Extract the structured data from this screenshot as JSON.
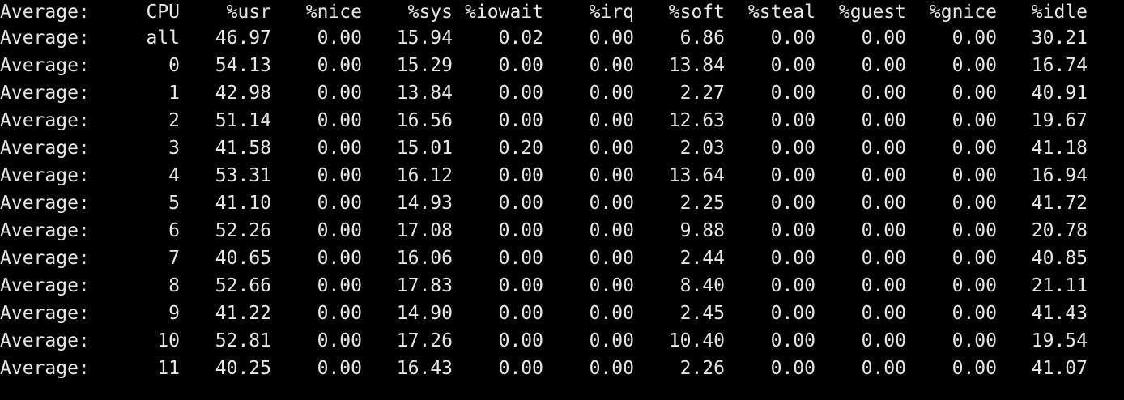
{
  "terminal": {
    "header": {
      "label": "Average:",
      "columns": [
        "CPU",
        "%usr",
        "%nice",
        "%sys",
        "%iowait",
        "%irq",
        "%soft",
        "%steal",
        "%guest",
        "%gnice",
        "%idle"
      ]
    },
    "rows": [
      {
        "label": "Average:",
        "cells": [
          "all",
          "46.97",
          "0.00",
          "15.94",
          "0.02",
          "0.00",
          "6.86",
          "0.00",
          "0.00",
          "0.00",
          "30.21"
        ]
      },
      {
        "label": "Average:",
        "cells": [
          "0",
          "54.13",
          "0.00",
          "15.29",
          "0.00",
          "0.00",
          "13.84",
          "0.00",
          "0.00",
          "0.00",
          "16.74"
        ]
      },
      {
        "label": "Average:",
        "cells": [
          "1",
          "42.98",
          "0.00",
          "13.84",
          "0.00",
          "0.00",
          "2.27",
          "0.00",
          "0.00",
          "0.00",
          "40.91"
        ]
      },
      {
        "label": "Average:",
        "cells": [
          "2",
          "51.14",
          "0.00",
          "16.56",
          "0.00",
          "0.00",
          "12.63",
          "0.00",
          "0.00",
          "0.00",
          "19.67"
        ]
      },
      {
        "label": "Average:",
        "cells": [
          "3",
          "41.58",
          "0.00",
          "15.01",
          "0.20",
          "0.00",
          "2.03",
          "0.00",
          "0.00",
          "0.00",
          "41.18"
        ]
      },
      {
        "label": "Average:",
        "cells": [
          "4",
          "53.31",
          "0.00",
          "16.12",
          "0.00",
          "0.00",
          "13.64",
          "0.00",
          "0.00",
          "0.00",
          "16.94"
        ]
      },
      {
        "label": "Average:",
        "cells": [
          "5",
          "41.10",
          "0.00",
          "14.93",
          "0.00",
          "0.00",
          "2.25",
          "0.00",
          "0.00",
          "0.00",
          "41.72"
        ]
      },
      {
        "label": "Average:",
        "cells": [
          "6",
          "52.26",
          "0.00",
          "17.08",
          "0.00",
          "0.00",
          "9.88",
          "0.00",
          "0.00",
          "0.00",
          "20.78"
        ]
      },
      {
        "label": "Average:",
        "cells": [
          "7",
          "40.65",
          "0.00",
          "16.06",
          "0.00",
          "0.00",
          "2.44",
          "0.00",
          "0.00",
          "0.00",
          "40.85"
        ]
      },
      {
        "label": "Average:",
        "cells": [
          "8",
          "52.66",
          "0.00",
          "17.83",
          "0.00",
          "0.00",
          "8.40",
          "0.00",
          "0.00",
          "0.00",
          "21.11"
        ]
      },
      {
        "label": "Average:",
        "cells": [
          "9",
          "41.22",
          "0.00",
          "14.90",
          "0.00",
          "0.00",
          "2.45",
          "0.00",
          "0.00",
          "0.00",
          "41.43"
        ]
      },
      {
        "label": "Average:",
        "cells": [
          "10",
          "52.81",
          "0.00",
          "17.26",
          "0.00",
          "0.00",
          "10.40",
          "0.00",
          "0.00",
          "0.00",
          "19.54"
        ]
      },
      {
        "label": "Average:",
        "cells": [
          "11",
          "40.25",
          "0.00",
          "16.43",
          "0.00",
          "0.00",
          "2.26",
          "0.00",
          "0.00",
          "0.00",
          "41.07"
        ]
      }
    ],
    "colors": {
      "background": "#000000",
      "text": "#e6e6e6"
    }
  }
}
